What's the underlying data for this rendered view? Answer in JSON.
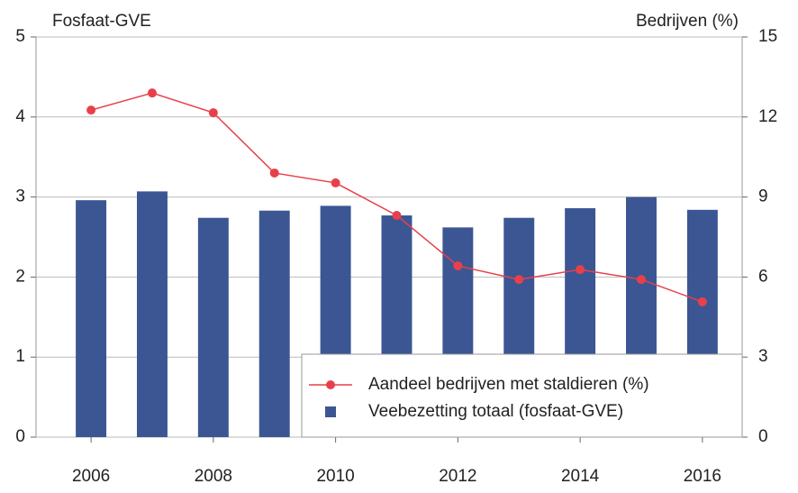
{
  "chart_data": {
    "type": "bar_line",
    "y_label": "Fosfaat-GVE",
    "y2_label": "Bedrijven (%)",
    "x": [
      2006,
      2007,
      2008,
      2009,
      2010,
      2011,
      2012,
      2013,
      2014,
      2015,
      2016
    ],
    "xlim": [
      2005.1,
      2016.65
    ],
    "xticks": [
      2006,
      2008,
      2010,
      2012,
      2014,
      2016
    ],
    "ylim": [
      0,
      5
    ],
    "yticks": [
      0,
      1,
      2,
      3,
      4,
      5
    ],
    "y2lim": [
      0,
      15
    ],
    "y2ticks": [
      0,
      3,
      6,
      9,
      12,
      15
    ],
    "grid": true,
    "legend": "lower right",
    "series": [
      {
        "name": "Aandeel bedrijven met staldieren (%)",
        "type": "line",
        "axis": "y2",
        "color": "#e8404a",
        "values": [
          12.26,
          12.9,
          12.16,
          9.9,
          9.53,
          8.31,
          6.42,
          5.91,
          6.28,
          5.91,
          5.07
        ]
      },
      {
        "name": "Veebezetting totaal (fosfaat-GVE)",
        "type": "bar",
        "axis": "y",
        "color": "#3b5693",
        "values": [
          2.96,
          3.07,
          2.74,
          2.83,
          2.89,
          2.77,
          2.62,
          2.74,
          2.86,
          3.0,
          2.84
        ]
      }
    ]
  }
}
